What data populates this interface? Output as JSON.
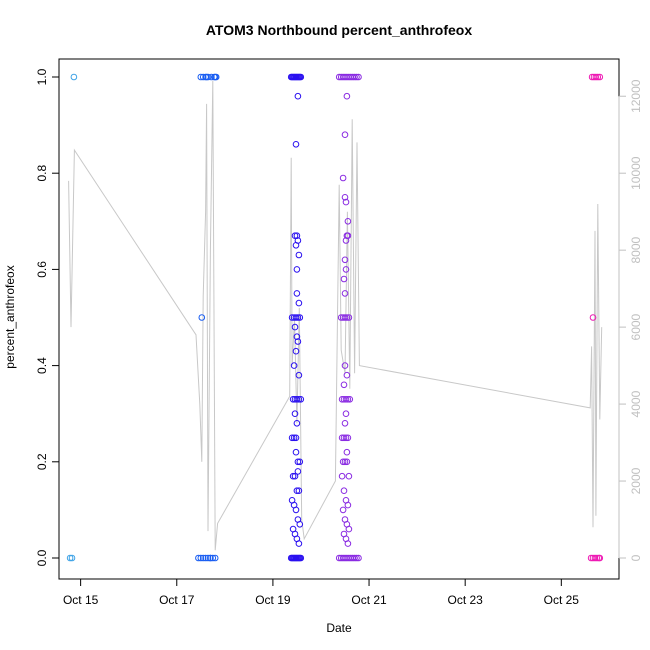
{
  "chart_data": {
    "type": "scatter",
    "title": "ATOM3 Northbound percent_anthrofeox",
    "xlabel": "Date",
    "ylabel": "percent_anthrofeox",
    "x_unit": "date (October, day of month)",
    "xlim": [
      14.55,
      26.2
    ],
    "ylim": [
      0,
      1
    ],
    "y2lim": [
      0,
      12500
    ],
    "grid": false,
    "legend": "none",
    "x_ticks": [
      {
        "value": 15,
        "label": "Oct 15"
      },
      {
        "value": 17,
        "label": "Oct 17"
      },
      {
        "value": 19,
        "label": "Oct 19"
      },
      {
        "value": 21,
        "label": "Oct 21"
      },
      {
        "value": 23,
        "label": "Oct 23"
      },
      {
        "value": 25,
        "label": "Oct 25"
      }
    ],
    "y_ticks": [
      {
        "value": 0,
        "label": "0.0"
      },
      {
        "value": 0.2,
        "label": "0.2"
      },
      {
        "value": 0.4,
        "label": "0.4"
      },
      {
        "value": 0.6,
        "label": "0.6"
      },
      {
        "value": 0.8,
        "label": "0.8"
      },
      {
        "value": 1,
        "label": "1.0"
      }
    ],
    "y2_ticks": [
      {
        "value": 0,
        "label": "0"
      },
      {
        "value": 2000,
        "label": "2000"
      },
      {
        "value": 4000,
        "label": "4000"
      },
      {
        "value": 6000,
        "label": "6000"
      },
      {
        "value": 8000,
        "label": "8000"
      },
      {
        "value": 10000,
        "label": "10000"
      },
      {
        "value": 12000,
        "label": "12000"
      }
    ],
    "colors": {
      "line": "#c8c8c8",
      "axis": "#000000",
      "right_axis": "#c0c0c0"
    },
    "series": [
      {
        "kind": "points",
        "axis": "left",
        "color": "#3fa3e6",
        "x": [
          14.78,
          14.82,
          14.86
        ],
        "y": [
          0,
          0,
          1
        ]
      },
      {
        "kind": "points",
        "axis": "left",
        "color": "#1a5ef2",
        "x": [
          17.45,
          17.5,
          17.52,
          17.55,
          17.6,
          17.62,
          17.65,
          17.7,
          17.72,
          17.75,
          17.8,
          17.82,
          17.5,
          17.55,
          17.6,
          17.65,
          17.7,
          17.78,
          17.8
        ],
        "y": [
          0,
          0,
          0.5,
          0,
          0,
          1,
          0,
          0,
          1,
          0,
          0,
          1,
          1,
          1,
          1,
          1,
          0,
          1,
          1
        ]
      },
      {
        "kind": "points",
        "axis": "left",
        "color": "#2a10f0",
        "x": [
          19.38,
          19.4,
          19.42,
          19.44,
          19.46,
          19.48,
          19.5,
          19.52,
          19.54,
          19.56,
          19.58,
          19.38,
          19.4,
          19.42,
          19.44,
          19.46,
          19.48,
          19.5,
          19.52,
          19.54,
          19.56,
          19.58,
          19.4,
          19.44,
          19.48,
          19.52,
          19.56,
          19.42,
          19.46,
          19.5,
          19.54,
          19.58,
          19.4,
          19.44,
          19.48,
          19.52,
          19.56,
          19.42,
          19.46,
          19.5,
          19.54,
          19.4,
          19.44,
          19.48,
          19.52,
          19.56,
          19.42,
          19.46,
          19.5,
          19.54,
          19.44,
          19.48,
          19.52,
          19.46,
          19.5,
          19.48,
          19.52,
          19.5,
          19.54,
          19.46,
          19.5,
          19.52,
          19.48,
          19.5,
          19.54,
          19.46,
          19.5,
          19.52,
          19.48,
          19.54
        ],
        "y": [
          0,
          0,
          0,
          0,
          0,
          0,
          0,
          0,
          0,
          0,
          0,
          1,
          1,
          1,
          1,
          1,
          1,
          1,
          1,
          1,
          1,
          1,
          0.5,
          0.5,
          0.5,
          0.5,
          0.5,
          0.33,
          0.33,
          0.33,
          0.33,
          0.33,
          0.25,
          0.25,
          0.25,
          0.2,
          0.2,
          0.17,
          0.17,
          0.14,
          0.14,
          0.12,
          0.11,
          0.1,
          0.08,
          0.07,
          0.06,
          0.05,
          0.04,
          0.03,
          0.4,
          0.43,
          0.45,
          0.3,
          0.28,
          0.22,
          0.18,
          0.6,
          0.63,
          0.67,
          0.67,
          0.66,
          0.65,
          0.55,
          0.53,
          0.48,
          0.46,
          0.96,
          0.86,
          0.38
        ]
      },
      {
        "kind": "points",
        "axis": "left",
        "color": "#8a2be2",
        "x": [
          20.38,
          20.42,
          20.46,
          20.5,
          20.54,
          20.58,
          20.62,
          20.66,
          20.7,
          20.74,
          20.78,
          20.38,
          20.42,
          20.46,
          20.5,
          20.54,
          20.58,
          20.62,
          20.66,
          20.7,
          20.74,
          20.78,
          20.42,
          20.46,
          20.5,
          20.54,
          20.58,
          20.44,
          20.48,
          20.52,
          20.56,
          20.6,
          20.44,
          20.48,
          20.52,
          20.56,
          20.46,
          20.5,
          20.54,
          20.58,
          20.44,
          20.48,
          20.52,
          20.56,
          20.46,
          20.5,
          20.54,
          20.58,
          20.48,
          20.52,
          20.56,
          20.5,
          20.54,
          20.48,
          20.52,
          20.5,
          20.54,
          20.5,
          20.52,
          20.48,
          20.5,
          20.54,
          20.52,
          20.56,
          20.5,
          20.52,
          20.46,
          20.5,
          20.54,
          20.56
        ],
        "y": [
          0,
          0,
          0,
          0,
          0,
          0,
          0,
          0,
          0,
          0,
          0,
          1,
          1,
          1,
          1,
          1,
          1,
          1,
          1,
          1,
          1,
          1,
          0.5,
          0.5,
          0.5,
          0.5,
          0.5,
          0.33,
          0.33,
          0.33,
          0.33,
          0.33,
          0.25,
          0.25,
          0.25,
          0.25,
          0.2,
          0.2,
          0.2,
          0.17,
          0.17,
          0.14,
          0.12,
          0.11,
          0.1,
          0.08,
          0.07,
          0.06,
          0.05,
          0.04,
          0.03,
          0.4,
          0.38,
          0.36,
          0.3,
          0.28,
          0.22,
          0.62,
          0.6,
          0.58,
          0.55,
          0.67,
          0.66,
          0.67,
          0.75,
          0.74,
          0.79,
          0.88,
          0.96,
          0.7
        ]
      },
      {
        "kind": "points",
        "axis": "left",
        "color": "#ee1ab4",
        "x": [
          25.62,
          25.66,
          25.7,
          25.74,
          25.78,
          25.8,
          25.64,
          25.68,
          25.72,
          25.76,
          25.8,
          25.66
        ],
        "y": [
          0,
          0,
          0,
          0,
          0,
          0,
          1,
          1,
          1,
          1,
          1,
          0.5
        ]
      },
      {
        "kind": "line",
        "axis": "right",
        "color": "#c8c8c8",
        "x": [
          14.75,
          14.8,
          14.87,
          17.4,
          17.48,
          17.52,
          17.55,
          17.6,
          17.62,
          17.65,
          17.7,
          17.75,
          17.8,
          17.85,
          19.35,
          19.38,
          19.4,
          19.45,
          19.5,
          19.55,
          19.6,
          19.65,
          20.3,
          20.38,
          20.42,
          20.5,
          20.55,
          20.6,
          20.65,
          20.7,
          20.75,
          20.8,
          25.6,
          25.63,
          25.66,
          25.7,
          25.72,
          25.76,
          25.8,
          25.84
        ],
        "y": [
          9800,
          6000,
          10600,
          5800,
          4000,
          2500,
          6800,
          9000,
          11800,
          700,
          8000,
          12400,
          200,
          900,
          4200,
          10400,
          5000,
          6200,
          3500,
          6500,
          1000,
          500,
          2000,
          9700,
          5400,
          4800,
          9000,
          4400,
          11400,
          4800,
          10800,
          5000,
          3900,
          5500,
          800,
          8500,
          1100,
          9200,
          3600,
          6000
        ]
      }
    ]
  }
}
